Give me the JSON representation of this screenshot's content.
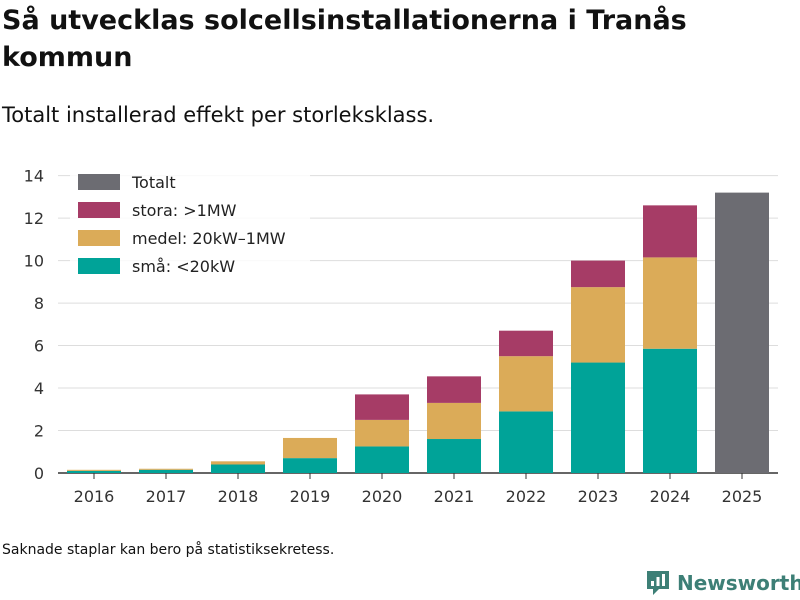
{
  "header": {
    "title": "Så utvecklas solcellsinstallationerna i Tranås kommun",
    "subtitle": "Totalt installerad effekt per storleksklass."
  },
  "footer": {
    "note": "Saknade staplar kan bero på statistiksekretess.",
    "brand": "Newsworthy"
  },
  "chart_data": {
    "type": "bar",
    "stacked": true,
    "categories": [
      "2016",
      "2017",
      "2018",
      "2019",
      "2020",
      "2021",
      "2022",
      "2023",
      "2024",
      "2025"
    ],
    "series": [
      {
        "name": "små: <20kW",
        "color": "#00a398",
        "values": [
          0.1,
          0.15,
          0.4,
          0.7,
          1.25,
          1.6,
          2.9,
          5.2,
          5.85,
          null
        ]
      },
      {
        "name": "medel: 20kW–1MW",
        "color": "#dbab58",
        "values": [
          0.05,
          0.05,
          0.15,
          0.95,
          1.25,
          1.7,
          2.6,
          3.55,
          4.3,
          null
        ]
      },
      {
        "name": "stora: >1MW",
        "color": "#a63c66",
        "values": [
          0,
          0,
          0,
          0,
          1.2,
          1.25,
          1.2,
          1.25,
          2.45,
          null
        ]
      },
      {
        "name": "Totalt",
        "color": "#6c6c72",
        "values": [
          null,
          null,
          null,
          null,
          null,
          null,
          null,
          null,
          null,
          13.2
        ]
      }
    ],
    "legend_order": [
      "Totalt",
      "stora: >1MW",
      "medel: 20kW–1MW",
      "små: <20kW"
    ],
    "yticks": [
      0,
      2,
      4,
      6,
      8,
      10,
      12,
      14
    ],
    "ylim": [
      0,
      14.5
    ],
    "grid": true,
    "legend_position": "top-left",
    "title": "Så utvecklas solcellsinstallationerna i Tranås kommun",
    "xlabel": "",
    "ylabel": ""
  }
}
